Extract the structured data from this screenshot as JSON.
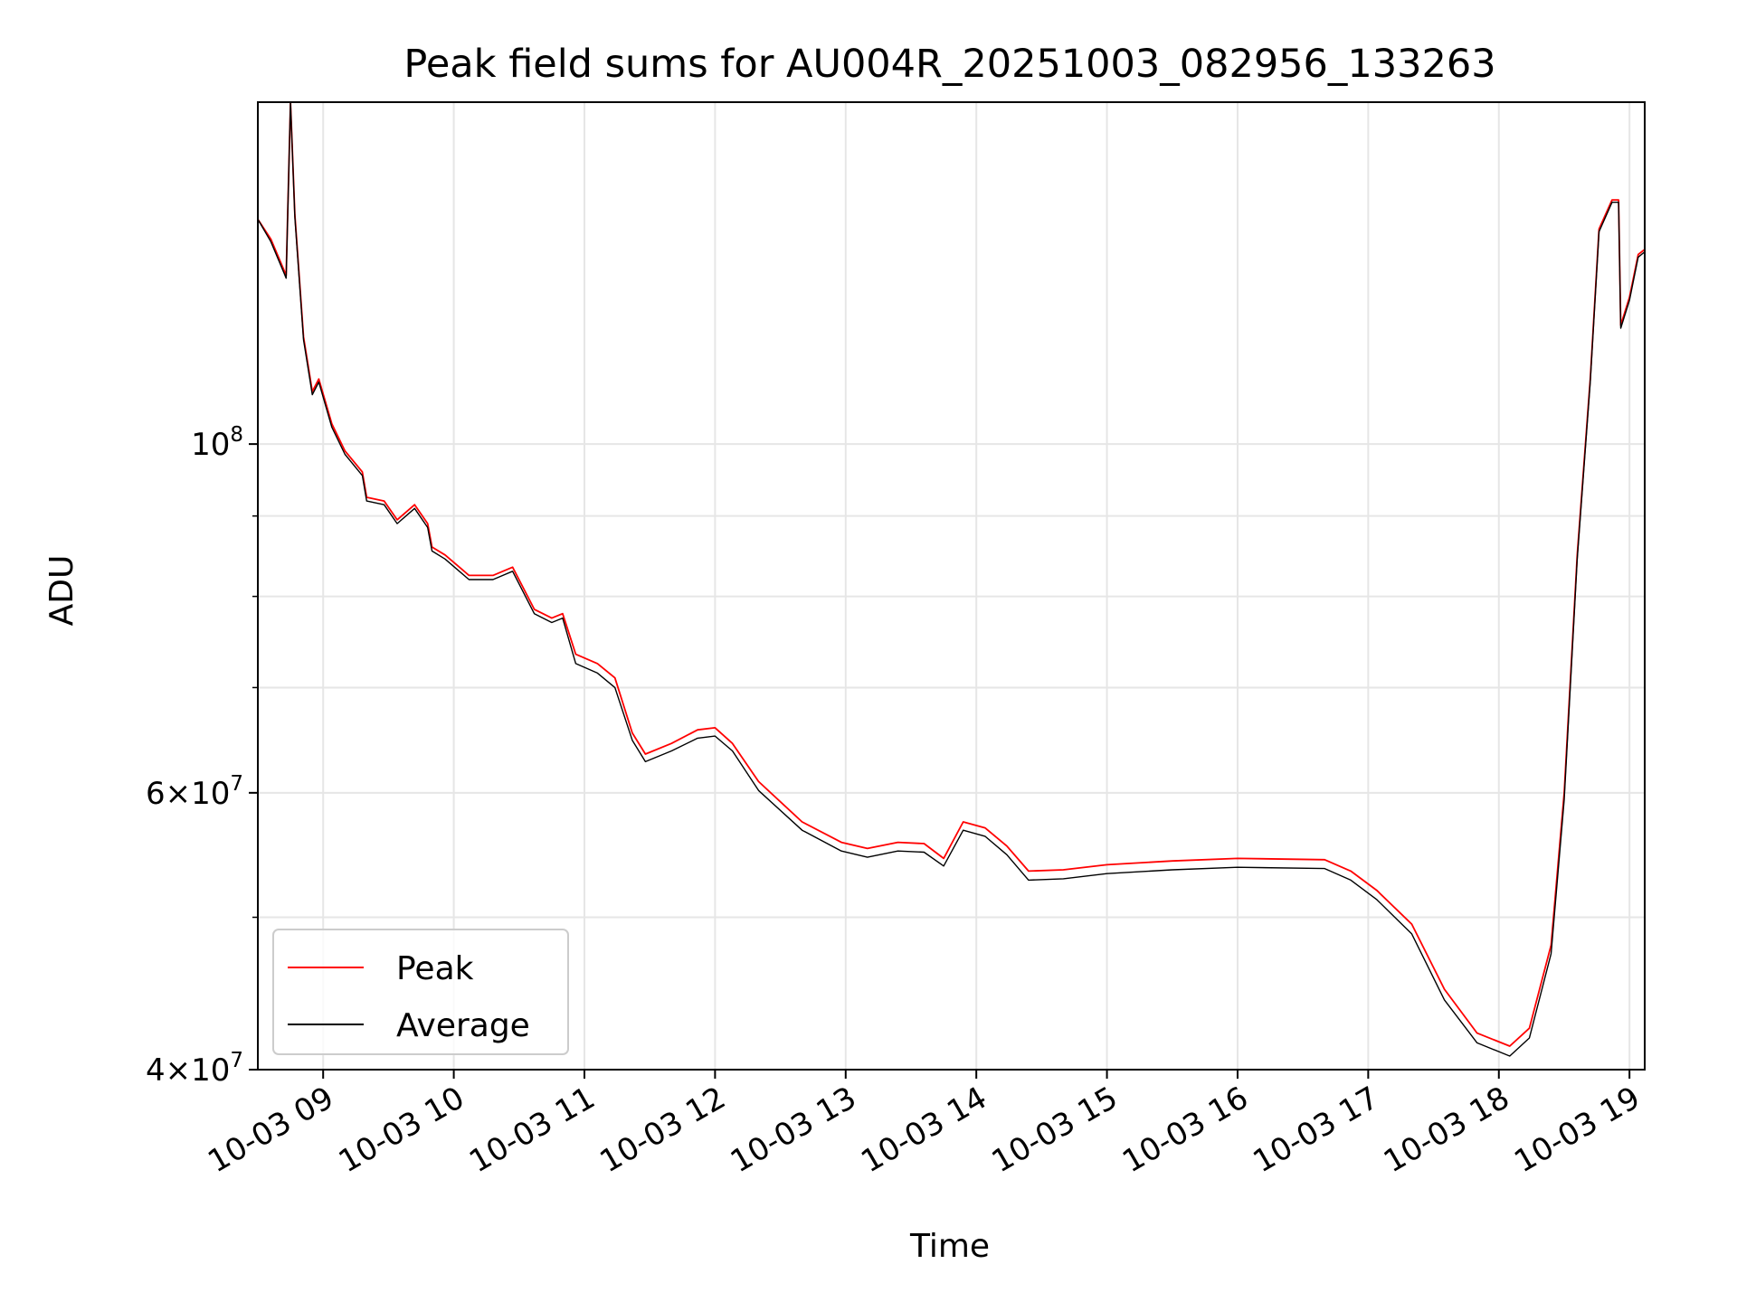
{
  "chart_data": {
    "type": "line",
    "title": "Peak field sums for AU004R_20251003_082956_133263",
    "xlabel": "Time",
    "ylabel": "ADU",
    "x_scale": "time",
    "y_scale": "log",
    "xlim": [
      "10-03 08:30",
      "10-03 19:07"
    ],
    "ylim": [
      40000000,
      165000000
    ],
    "x_ticks": [
      "10-03 09",
      "10-03 10",
      "10-03 11",
      "10-03 12",
      "10-03 13",
      "10-03 14",
      "10-03 15",
      "10-03 16",
      "10-03 17",
      "10-03 18",
      "10-03 19"
    ],
    "y_ticks": [
      {
        "value": 100000000,
        "mantissa": "",
        "base": "10",
        "exp": "8"
      },
      {
        "value": 60000000,
        "mantissa": "6×",
        "base": "10",
        "exp": "7"
      },
      {
        "value": 40000000,
        "mantissa": "4×",
        "base": "10",
        "exp": "7"
      }
    ],
    "y_minor_grid": [
      50000000,
      70000000,
      80000000,
      90000000
    ],
    "grid": true,
    "legend": {
      "position": "lower-left",
      "entries": [
        "Peak",
        "Average"
      ]
    },
    "series": [
      {
        "name": "Peak",
        "color": "#ff0000",
        "points": [
          [
            "10-03 08:30",
            139000000
          ],
          [
            "10-03 08:36",
            135000000
          ],
          [
            "10-03 08:42",
            129000000
          ],
          [
            "10-03 08:43",
            128000000
          ],
          [
            "10-03 08:45",
            165000000
          ],
          [
            "10-03 08:47",
            140000000
          ],
          [
            "10-03 08:51",
            117000000
          ],
          [
            "10-03 08:55",
            108000000
          ],
          [
            "10-03 08:58",
            110000000
          ],
          [
            "10-03 09:04",
            103000000
          ],
          [
            "10-03 09:10",
            99000000
          ],
          [
            "10-03 09:18",
            96000000
          ],
          [
            "10-03 09:20",
            92500000
          ],
          [
            "10-03 09:28",
            92000000
          ],
          [
            "10-03 09:34",
            89500000
          ],
          [
            "10-03 09:42",
            91500000
          ],
          [
            "10-03 09:48",
            89000000
          ],
          [
            "10-03 09:50",
            86000000
          ],
          [
            "10-03 09:56",
            85000000
          ],
          [
            "10-03 10:07",
            82500000
          ],
          [
            "10-03 10:18",
            82500000
          ],
          [
            "10-03 10:27",
            83500000
          ],
          [
            "10-03 10:37",
            78500000
          ],
          [
            "10-03 10:45",
            77500000
          ],
          [
            "10-03 10:50",
            78000000
          ],
          [
            "10-03 10:56",
            73500000
          ],
          [
            "10-03 11:06",
            72500000
          ],
          [
            "10-03 11:14",
            71000000
          ],
          [
            "10-03 11:22",
            65500000
          ],
          [
            "10-03 11:28",
            63500000
          ],
          [
            "10-03 11:40",
            64500000
          ],
          [
            "10-03 11:52",
            65800000
          ],
          [
            "10-03 12:00",
            66000000
          ],
          [
            "10-03 12:08",
            64500000
          ],
          [
            "10-03 12:20",
            61000000
          ],
          [
            "10-03 12:40",
            57500000
          ],
          [
            "10-03 12:58",
            55800000
          ],
          [
            "10-03 13:10",
            55300000
          ],
          [
            "10-03 13:24",
            55800000
          ],
          [
            "10-03 13:36",
            55700000
          ],
          [
            "10-03 13:45",
            54500000
          ],
          [
            "10-03 13:54",
            57500000
          ],
          [
            "10-03 14:04",
            57000000
          ],
          [
            "10-03 14:14",
            55500000
          ],
          [
            "10-03 14:24",
            53500000
          ],
          [
            "10-03 14:40",
            53600000
          ],
          [
            "10-03 15:00",
            54000000
          ],
          [
            "10-03 15:30",
            54300000
          ],
          [
            "10-03 16:00",
            54500000
          ],
          [
            "10-03 16:40",
            54400000
          ],
          [
            "10-03 16:52",
            53500000
          ],
          [
            "10-03 17:04",
            52000000
          ],
          [
            "10-03 17:20",
            49500000
          ],
          [
            "10-03 17:35",
            45000000
          ],
          [
            "10-03 17:50",
            42200000
          ],
          [
            "10-03 18:05",
            41400000
          ],
          [
            "10-03 18:14",
            42500000
          ],
          [
            "10-03 18:24",
            48000000
          ],
          [
            "10-03 18:30",
            60000000
          ],
          [
            "10-03 18:36",
            85000000
          ],
          [
            "10-03 18:42",
            110000000
          ],
          [
            "10-03 18:46",
            137000000
          ],
          [
            "10-03 18:52",
            143000000
          ],
          [
            "10-03 18:55",
            143000000
          ],
          [
            "10-03 18:56",
            119000000
          ],
          [
            "10-03 19:00",
            124000000
          ],
          [
            "10-03 19:04",
            132000000
          ],
          [
            "10-03 19:07",
            133000000
          ]
        ]
      },
      {
        "name": "Average",
        "color": "#000000",
        "points": [
          [
            "10-03 08:30",
            139000000
          ],
          [
            "10-03 08:36",
            134500000
          ],
          [
            "10-03 08:42",
            128500000
          ],
          [
            "10-03 08:43",
            127500000
          ],
          [
            "10-03 08:45",
            165000000
          ],
          [
            "10-03 08:47",
            139500000
          ],
          [
            "10-03 08:51",
            116500000
          ],
          [
            "10-03 08:55",
            107500000
          ],
          [
            "10-03 08:58",
            109500000
          ],
          [
            "10-03 09:04",
            102500000
          ],
          [
            "10-03 09:10",
            98500000
          ],
          [
            "10-03 09:18",
            95500000
          ],
          [
            "10-03 09:20",
            92000000
          ],
          [
            "10-03 09:28",
            91500000
          ],
          [
            "10-03 09:34",
            89000000
          ],
          [
            "10-03 09:42",
            91000000
          ],
          [
            "10-03 09:48",
            88500000
          ],
          [
            "10-03 09:50",
            85500000
          ],
          [
            "10-03 09:56",
            84500000
          ],
          [
            "10-03 10:07",
            82000000
          ],
          [
            "10-03 10:18",
            82000000
          ],
          [
            "10-03 10:27",
            83000000
          ],
          [
            "10-03 10:37",
            78000000
          ],
          [
            "10-03 10:45",
            77000000
          ],
          [
            "10-03 10:50",
            77500000
          ],
          [
            "10-03 10:56",
            72500000
          ],
          [
            "10-03 11:06",
            71500000
          ],
          [
            "10-03 11:14",
            70000000
          ],
          [
            "10-03 11:22",
            64800000
          ],
          [
            "10-03 11:28",
            62800000
          ],
          [
            "10-03 11:40",
            63800000
          ],
          [
            "10-03 11:52",
            65000000
          ],
          [
            "10-03 12:00",
            65200000
          ],
          [
            "10-03 12:08",
            63800000
          ],
          [
            "10-03 12:20",
            60200000
          ],
          [
            "10-03 12:40",
            56800000
          ],
          [
            "10-03 12:58",
            55100000
          ],
          [
            "10-03 13:10",
            54600000
          ],
          [
            "10-03 13:24",
            55100000
          ],
          [
            "10-03 13:36",
            55000000
          ],
          [
            "10-03 13:45",
            53900000
          ],
          [
            "10-03 13:54",
            56800000
          ],
          [
            "10-03 14:04",
            56300000
          ],
          [
            "10-03 14:14",
            54800000
          ],
          [
            "10-03 14:24",
            52800000
          ],
          [
            "10-03 14:40",
            52900000
          ],
          [
            "10-03 15:00",
            53300000
          ],
          [
            "10-03 15:30",
            53600000
          ],
          [
            "10-03 16:00",
            53800000
          ],
          [
            "10-03 16:40",
            53700000
          ],
          [
            "10-03 16:52",
            52800000
          ],
          [
            "10-03 17:04",
            51300000
          ],
          [
            "10-03 17:20",
            48800000
          ],
          [
            "10-03 17:35",
            44300000
          ],
          [
            "10-03 17:50",
            41600000
          ],
          [
            "10-03 18:05",
            40800000
          ],
          [
            "10-03 18:14",
            41900000
          ],
          [
            "10-03 18:24",
            47400000
          ],
          [
            "10-03 18:30",
            59400000
          ],
          [
            "10-03 18:36",
            84500000
          ],
          [
            "10-03 18:42",
            109500000
          ],
          [
            "10-03 18:46",
            136500000
          ],
          [
            "10-03 18:52",
            142500000
          ],
          [
            "10-03 18:55",
            142500000
          ],
          [
            "10-03 18:56",
            118500000
          ],
          [
            "10-03 19:00",
            123500000
          ],
          [
            "10-03 19:04",
            131500000
          ],
          [
            "10-03 19:07",
            132500000
          ]
        ]
      }
    ]
  }
}
